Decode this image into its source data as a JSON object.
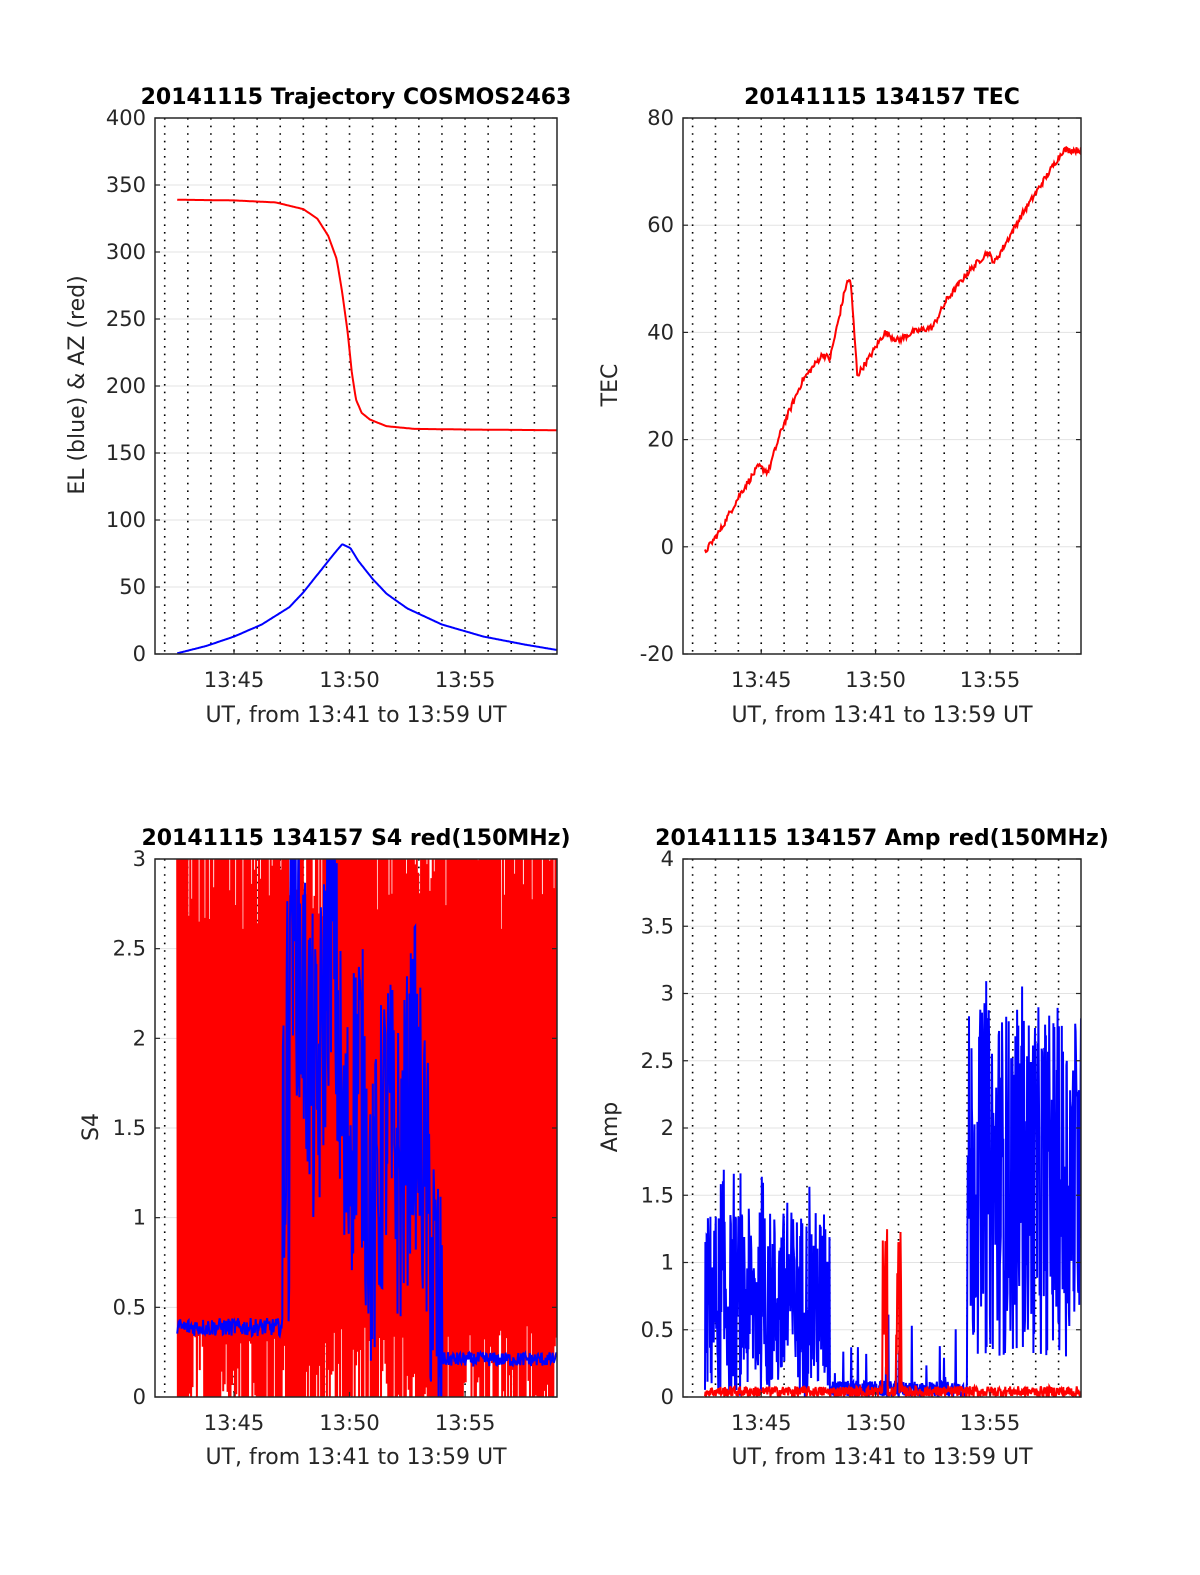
{
  "chart_data": [
    {
      "type": "line",
      "title": "20141115 Trajectory COSMOS2463",
      "xlabel": "UT, from 13:41 to 13:59 UT",
      "ylabel": "EL (blue) & AZ (red)",
      "xlim": [
        13.693,
        13.983
      ],
      "ylim": [
        0,
        400
      ],
      "xticks": [
        {
          "v": 13.75,
          "label": "13:45"
        },
        {
          "v": 13.8333,
          "label": "13:50"
        },
        {
          "v": 13.9167,
          "label": "13:55"
        }
      ],
      "yticks": [
        0,
        50,
        100,
        150,
        200,
        250,
        300,
        350,
        400
      ],
      "ytick_labels": [
        "0",
        "50",
        "100",
        "150",
        "200",
        "250",
        "300",
        "350",
        "400"
      ],
      "grid": "horizontal solid, vertical dotted",
      "series": [
        {
          "color": "#ff0000",
          "x": [
            13.709,
            13.75,
            13.78,
            13.8,
            13.81,
            13.818,
            13.824,
            13.828,
            13.832,
            13.835,
            13.838,
            13.842,
            13.848,
            13.86,
            13.88,
            13.92,
            13.983
          ],
          "values": [
            339,
            338.5,
            337,
            332,
            325,
            312,
            295,
            270,
            240,
            210,
            190,
            180,
            175,
            170,
            168,
            167.5,
            167
          ]
        },
        {
          "color": "#0000ff",
          "x": [
            13.709,
            13.73,
            13.75,
            13.77,
            13.79,
            13.8,
            13.81,
            13.82,
            13.828,
            13.834,
            13.84,
            13.85,
            13.86,
            13.875,
            13.9,
            13.93,
            13.96,
            13.983
          ],
          "values": [
            0.5,
            6,
            13,
            22,
            35,
            46,
            59,
            72,
            82,
            79,
            69,
            56,
            45,
            34,
            22,
            13,
            7,
            3
          ]
        }
      ]
    },
    {
      "type": "line",
      "title": "20141115 134157 TEC",
      "xlabel": "UT, from 13:41 to 13:59 UT",
      "ylabel": "TEC",
      "xlim": [
        13.693,
        13.983
      ],
      "ylim": [
        -20,
        80
      ],
      "xticks": [
        {
          "v": 13.75,
          "label": "13:45"
        },
        {
          "v": 13.8333,
          "label": "13:50"
        },
        {
          "v": 13.9167,
          "label": "13:55"
        }
      ],
      "yticks": [
        -20,
        0,
        20,
        40,
        60,
        80
      ],
      "ytick_labels": [
        "-20",
        "0",
        "20",
        "40",
        "60",
        "80"
      ],
      "grid": "horizontal solid, vertical dotted",
      "series": [
        {
          "color": "#ff0000",
          "x": [
            13.709,
            13.72,
            13.735,
            13.748,
            13.755,
            13.765,
            13.78,
            13.795,
            13.8,
            13.812,
            13.815,
            13.82,
            13.828,
            13.84,
            13.85,
            13.86,
            13.875,
            13.885,
            13.9,
            13.915,
            13.92,
            13.94,
            13.96,
            13.97,
            13.983
          ],
          "values": [
            -1,
            3,
            10,
            15,
            14,
            22,
            31,
            36,
            35,
            49,
            50,
            32,
            35,
            40,
            38.5,
            40,
            41,
            46,
            51,
            55,
            53,
            62,
            70,
            74,
            74
          ]
        }
      ]
    },
    {
      "type": "line",
      "title": "20141115 134157 S4 red(150MHz)",
      "xlabel": "UT, from 13:41 to 13:59 UT",
      "ylabel": "S4",
      "xlim": [
        13.693,
        13.983
      ],
      "ylim": [
        0,
        3
      ],
      "xticks": [
        {
          "v": 13.75,
          "label": "13:45"
        },
        {
          "v": 13.8333,
          "label": "13:50"
        },
        {
          "v": 13.9167,
          "label": "13:55"
        }
      ],
      "yticks": [
        0,
        0.5,
        1,
        1.5,
        2,
        2.5,
        3
      ],
      "ytick_labels": [
        "0",
        "0.5",
        "1",
        "1.5",
        "2",
        "2.5",
        "3"
      ],
      "grid": "horizontal solid, vertical dotted",
      "series": [
        {
          "color": "#ff0000",
          "x": [
            13.709,
            13.983
          ],
          "values": [
            0,
            3
          ],
          "note_style": "dense spikes spanning 0-3 over whole window"
        },
        {
          "color": "#0000ff",
          "x": [
            13.709,
            13.75,
            13.78,
            13.79,
            13.8,
            13.81,
            13.82,
            13.83,
            13.84,
            13.85,
            13.86,
            13.87,
            13.88,
            13.9,
            13.94,
            13.983
          ],
          "values": [
            0.4,
            0.38,
            0.38,
            3,
            2.2,
            1.6,
            2.8,
            1.2,
            1.9,
            0.9,
            1.6,
            1.2,
            1.8,
            0.2,
            0.22,
            0.21
          ]
        }
      ]
    },
    {
      "type": "line",
      "title": "20141115 134157 Amp red(150MHz)",
      "xlabel": "UT, from 13:41 to 13:59 UT",
      "ylabel": "Amp",
      "xlim": [
        13.693,
        13.983
      ],
      "ylim": [
        0,
        4
      ],
      "xticks": [
        {
          "v": 13.75,
          "label": "13:45"
        },
        {
          "v": 13.8333,
          "label": "13:50"
        },
        {
          "v": 13.9167,
          "label": "13:55"
        }
      ],
      "yticks": [
        0,
        0.5,
        1,
        1.5,
        2,
        2.5,
        3,
        3.5,
        4
      ],
      "ytick_labels": [
        "0",
        "0.5",
        "1",
        "1.5",
        "2",
        "2.5",
        "3",
        "3.5",
        "4"
      ],
      "grid": "horizontal solid, vertical dotted",
      "series": [
        {
          "color": "#0000ff",
          "x": [
            13.709,
            13.8,
            13.801,
            13.9,
            13.901,
            13.983
          ],
          "values": [
            1.5,
            1.5,
            0.1,
            0.15,
            3.0,
            3.5
          ]
        },
        {
          "color": "#ff0000",
          "x": [
            13.709,
            13.8,
            13.83,
            13.84,
            13.85,
            13.9,
            13.983
          ],
          "values": [
            0.05,
            0.05,
            1.25,
            0.1,
            1.28,
            0.05,
            0.1
          ]
        }
      ]
    }
  ]
}
